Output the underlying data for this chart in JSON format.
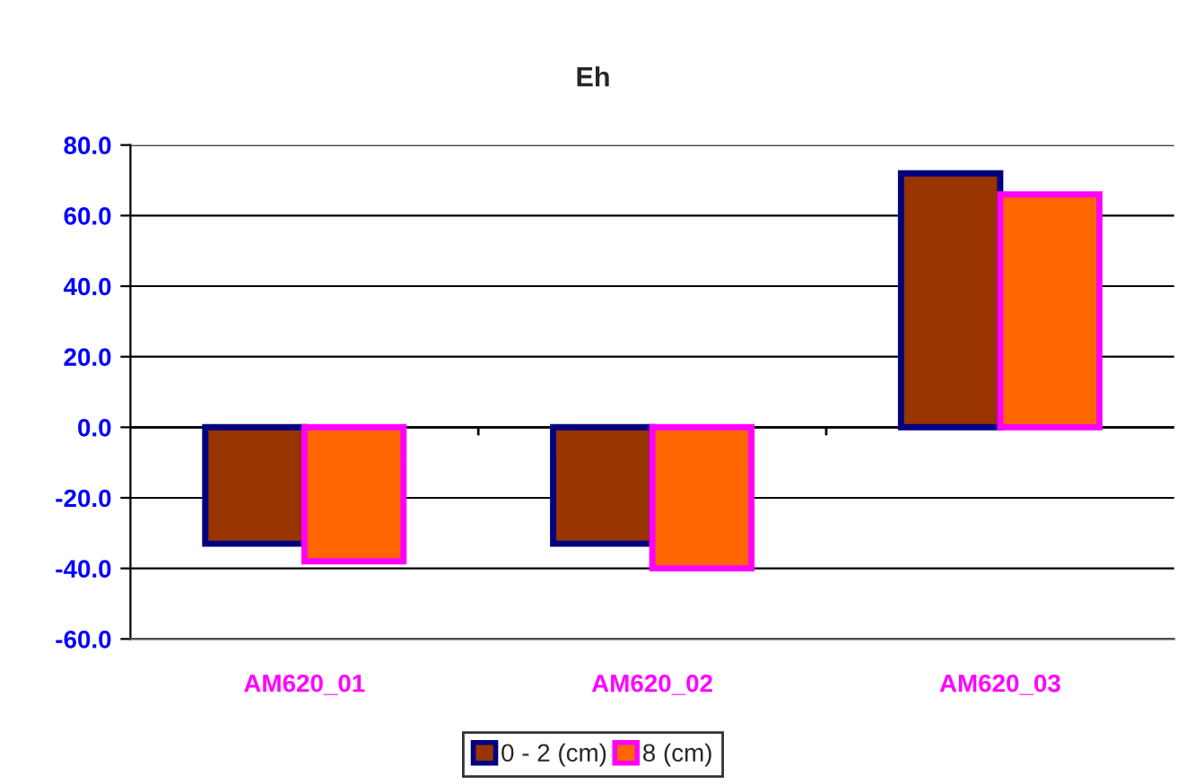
{
  "chart_data": {
    "type": "bar",
    "title": "Eh",
    "categories": [
      "AM620_01",
      "AM620_02",
      "AM620_03"
    ],
    "series": [
      {
        "name": "0 - 2 (cm)",
        "color": "#993300",
        "values": [
          -33,
          -33,
          72
        ]
      },
      {
        "name": "8 (cm)",
        "color": "#ff6600",
        "values": [
          -38,
          -40,
          66
        ]
      }
    ],
    "ylim": [
      -60,
      80
    ],
    "yticks": [
      {
        "value": -60,
        "label": "-60.0"
      },
      {
        "value": -40,
        "label": "-40.0"
      },
      {
        "value": -20,
        "label": "-20.0"
      },
      {
        "value": 0,
        "label": "0.0"
      },
      {
        "value": 20,
        "label": "20.0"
      },
      {
        "value": 40,
        "label": "40.0"
      },
      {
        "value": 60,
        "label": "60.0"
      },
      {
        "value": 80,
        "label": "80.0"
      }
    ],
    "grid": "y",
    "legend": "bottom"
  }
}
